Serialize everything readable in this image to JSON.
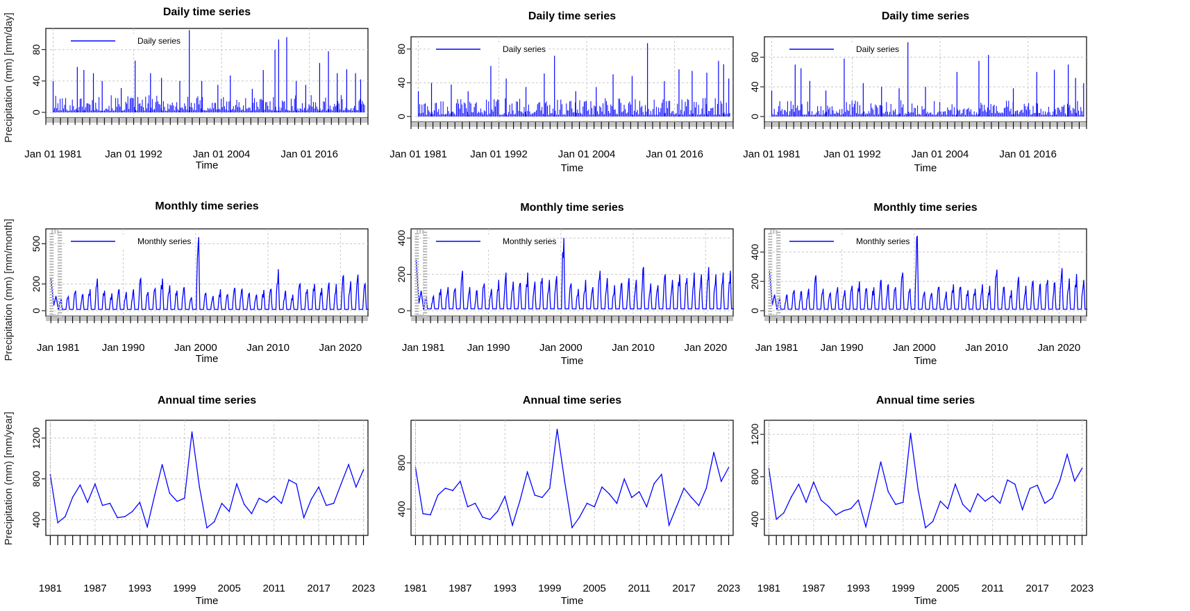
{
  "figure": {
    "ylabels": [
      "Precipitation (mm) [mm/day]",
      "Precipitation (mm) [mm/month]",
      "Precipitation (mm) [mm/year]"
    ],
    "grid": true,
    "line_color": "#0000ff"
  },
  "chart_data": [
    {
      "type": "line",
      "row": "daily",
      "col": 0,
      "title": "Daily time series",
      "xlabel": "Time",
      "legend": "Daily series",
      "legend_position": "top-left",
      "xlim": [
        1980,
        2024
      ],
      "ylim": [
        0,
        100
      ],
      "yticks": [
        0,
        40,
        80
      ],
      "xticks": [
        {
          "x": 1981,
          "label": "Jan 01 1981"
        },
        {
          "x": 1992,
          "label": "Jan 01 1992"
        },
        {
          "x": 2004,
          "label": "Jan 01 2004"
        },
        {
          "x": 2016,
          "label": "Jan 01 2016"
        }
      ],
      "peaks": [
        {
          "x": 1981.0,
          "y": 40
        },
        {
          "x": 1984.3,
          "y": 58
        },
        {
          "x": 1985.2,
          "y": 54
        },
        {
          "x": 1986.5,
          "y": 50
        },
        {
          "x": 1987.7,
          "y": 40
        },
        {
          "x": 1990.3,
          "y": 31
        },
        {
          "x": 1992.2,
          "y": 66
        },
        {
          "x": 1994.3,
          "y": 50
        },
        {
          "x": 1995.8,
          "y": 44
        },
        {
          "x": 1998.3,
          "y": 40
        },
        {
          "x": 1999.6,
          "y": 105
        },
        {
          "x": 2001.3,
          "y": 40
        },
        {
          "x": 2003.5,
          "y": 35
        },
        {
          "x": 2005.2,
          "y": 47
        },
        {
          "x": 2008.2,
          "y": 30
        },
        {
          "x": 2009.7,
          "y": 54
        },
        {
          "x": 2011.3,
          "y": 80
        },
        {
          "x": 2011.8,
          "y": 93
        },
        {
          "x": 2012.9,
          "y": 96
        },
        {
          "x": 2014.2,
          "y": 40
        },
        {
          "x": 2015.5,
          "y": 35
        },
        {
          "x": 2017.4,
          "y": 63
        },
        {
          "x": 2018.6,
          "y": 78
        },
        {
          "x": 2019.8,
          "y": 50
        },
        {
          "x": 2021.1,
          "y": 55
        },
        {
          "x": 2022.3,
          "y": 50
        },
        {
          "x": 2023.0,
          "y": 42
        }
      ]
    },
    {
      "type": "line",
      "row": "daily",
      "col": 1,
      "title": "Daily time series",
      "xlabel": "Time",
      "legend": "Daily series",
      "legend_position": "top-left",
      "xlim": [
        1980,
        2024
      ],
      "ylim": [
        0,
        88
      ],
      "yticks": [
        0,
        40,
        80
      ],
      "xticks": [
        {
          "x": 1981,
          "label": "Jan 01 1981"
        },
        {
          "x": 1992,
          "label": "Jan 01 1992"
        },
        {
          "x": 2004,
          "label": "Jan 01 2004"
        },
        {
          "x": 2016,
          "label": "Jan 01 2016"
        }
      ],
      "peaks": [
        {
          "x": 1981.0,
          "y": 30
        },
        {
          "x": 1982.8,
          "y": 40
        },
        {
          "x": 1985.5,
          "y": 38
        },
        {
          "x": 1987.8,
          "y": 30
        },
        {
          "x": 1990.9,
          "y": 60
        },
        {
          "x": 1993.0,
          "y": 45
        },
        {
          "x": 1995.7,
          "y": 35
        },
        {
          "x": 1998.2,
          "y": 51
        },
        {
          "x": 1999.6,
          "y": 72
        },
        {
          "x": 2002.5,
          "y": 30
        },
        {
          "x": 2005.3,
          "y": 35
        },
        {
          "x": 2007.6,
          "y": 50
        },
        {
          "x": 2010.2,
          "y": 48
        },
        {
          "x": 2012.3,
          "y": 87
        },
        {
          "x": 2014.6,
          "y": 42
        },
        {
          "x": 2016.6,
          "y": 56
        },
        {
          "x": 2018.4,
          "y": 54
        },
        {
          "x": 2020.4,
          "y": 52
        },
        {
          "x": 2022.0,
          "y": 66
        },
        {
          "x": 2022.7,
          "y": 62
        },
        {
          "x": 2023.4,
          "y": 45
        }
      ]
    },
    {
      "type": "line",
      "row": "daily",
      "col": 2,
      "title": "Daily time series",
      "xlabel": "Time",
      "legend": "Daily series",
      "legend_position": "top-left",
      "xlim": [
        1980,
        2024
      ],
      "ylim": [
        0,
        100
      ],
      "yticks": [
        0,
        40,
        80
      ],
      "xticks": [
        {
          "x": 1981,
          "label": "Jan 01 1981"
        },
        {
          "x": 1992,
          "label": "Jan 01 1992"
        },
        {
          "x": 2004,
          "label": "Jan 01 2004"
        },
        {
          "x": 2016,
          "label": "Jan 01 2016"
        }
      ],
      "peaks": [
        {
          "x": 1981.0,
          "y": 35
        },
        {
          "x": 1984.2,
          "y": 70
        },
        {
          "x": 1985.0,
          "y": 65
        },
        {
          "x": 1986.2,
          "y": 48
        },
        {
          "x": 1988.4,
          "y": 35
        },
        {
          "x": 1990.9,
          "y": 78
        },
        {
          "x": 1993.5,
          "y": 45
        },
        {
          "x": 1996.0,
          "y": 40
        },
        {
          "x": 1998.4,
          "y": 38
        },
        {
          "x": 1999.6,
          "y": 100
        },
        {
          "x": 2002.0,
          "y": 40
        },
        {
          "x": 2006.3,
          "y": 60
        },
        {
          "x": 2009.3,
          "y": 75
        },
        {
          "x": 2010.6,
          "y": 83
        },
        {
          "x": 2014.0,
          "y": 38
        },
        {
          "x": 2017.2,
          "y": 60
        },
        {
          "x": 2019.6,
          "y": 63
        },
        {
          "x": 2021.5,
          "y": 70
        },
        {
          "x": 2022.5,
          "y": 52
        },
        {
          "x": 2023.6,
          "y": 45
        }
      ]
    },
    {
      "type": "line",
      "row": "monthly",
      "col": 0,
      "title": "Monthly time series",
      "xlabel": "Time",
      "legend": "Monthly series",
      "legend_position": "top-left",
      "xlim": [
        1979.3,
        2023.8
      ],
      "ylim": [
        0,
        570
      ],
      "yticks": [
        0,
        200,
        500
      ],
      "xticks": [
        {
          "x": 1981,
          "label": "Jan 1981"
        },
        {
          "x": 1990,
          "label": "Jan 1990"
        },
        {
          "x": 2000,
          "label": "Jan 2000"
        },
        {
          "x": 2010,
          "label": "Jan 2010"
        },
        {
          "x": 2020,
          "label": "Jan 2020"
        }
      ],
      "start_value": 240,
      "annual_peaks": [
        95,
        105,
        150,
        120,
        160,
        240,
        150,
        130,
        160,
        140,
        160,
        240,
        140,
        165,
        240,
        190,
        150,
        175,
        100,
        550,
        130,
        110,
        160,
        120,
        170,
        160,
        130,
        120,
        155,
        160,
        310,
        150,
        120,
        200,
        160,
        200,
        170,
        210,
        200,
        260,
        220,
        270,
        200
      ]
    },
    {
      "type": "line",
      "row": "monthly",
      "col": 1,
      "title": "Monthly time series",
      "xlabel": "Time",
      "legend": "Monthly series",
      "legend_position": "top-left",
      "xlim": [
        1979.3,
        2023.8
      ],
      "ylim": [
        0,
        420
      ],
      "yticks": [
        0,
        200,
        400
      ],
      "xticks": [
        {
          "x": 1981,
          "label": "Jan 1981"
        },
        {
          "x": 1990,
          "label": "Jan 1990"
        },
        {
          "x": 2000,
          "label": "Jan 2000"
        },
        {
          "x": 2010,
          "label": "Jan 2010"
        },
        {
          "x": 2020,
          "label": "Jan 2020"
        }
      ],
      "start_value": 280,
      "annual_peaks": [
        70,
        80,
        120,
        130,
        120,
        220,
        130,
        110,
        150,
        120,
        170,
        210,
        160,
        150,
        210,
        160,
        180,
        170,
        190,
        400,
        150,
        120,
        170,
        130,
        220,
        180,
        140,
        150,
        180,
        170,
        240,
        150,
        140,
        200,
        170,
        200,
        180,
        210,
        200,
        240,
        200,
        210,
        220
      ]
    },
    {
      "type": "line",
      "row": "monthly",
      "col": 2,
      "title": "Monthly time series",
      "xlabel": "Time",
      "legend": "Monthly series",
      "legend_position": "top-left",
      "xlim": [
        1979.3,
        2023.8
      ],
      "ylim": [
        0,
        520
      ],
      "yticks": [
        0,
        200,
        400
      ],
      "xticks": [
        {
          "x": 1981,
          "label": "Jan 1981"
        },
        {
          "x": 1990,
          "label": "Jan 1990"
        },
        {
          "x": 2000,
          "label": "Jan 2000"
        },
        {
          "x": 2010,
          "label": "Jan 2010"
        },
        {
          "x": 2020,
          "label": "Jan 2020"
        }
      ],
      "start_value": 270,
      "annual_peaks": [
        90,
        110,
        140,
        130,
        150,
        240,
        150,
        120,
        160,
        140,
        170,
        200,
        150,
        160,
        210,
        180,
        160,
        260,
        150,
        510,
        130,
        120,
        160,
        130,
        180,
        160,
        140,
        150,
        180,
        170,
        280,
        160,
        140,
        230,
        170,
        200,
        180,
        210,
        190,
        290,
        220,
        250,
        210
      ]
    },
    {
      "type": "line",
      "row": "annual",
      "col": 0,
      "title": "Annual time series",
      "xlabel": "Time",
      "xlim": [
        1980.4,
        2023.6
      ],
      "ylim": [
        300,
        1320
      ],
      "yticks": [
        400,
        800,
        1200
      ],
      "xticks": [
        {
          "x": 1981,
          "label": "1981"
        },
        {
          "x": 1987,
          "label": "1987"
        },
        {
          "x": 1993,
          "label": "1993"
        },
        {
          "x": 1999,
          "label": "1999"
        },
        {
          "x": 2005,
          "label": "2005"
        },
        {
          "x": 2011,
          "label": "2011"
        },
        {
          "x": 2017,
          "label": "2017"
        },
        {
          "x": 2023,
          "label": "2023"
        }
      ],
      "x": [
        1981,
        1982,
        1983,
        1984,
        1985,
        1986,
        1987,
        1988,
        1989,
        1990,
        1991,
        1992,
        1993,
        1994,
        1995,
        1996,
        1997,
        1998,
        1999,
        2000,
        2001,
        2002,
        2003,
        2004,
        2005,
        2006,
        2007,
        2008,
        2009,
        2010,
        2011,
        2012,
        2013,
        2014,
        2015,
        2016,
        2017,
        2018,
        2019,
        2020,
        2021,
        2022,
        2023
      ],
      "y": [
        840,
        370,
        430,
        620,
        740,
        570,
        750,
        540,
        560,
        420,
        430,
        480,
        570,
        330,
        640,
        940,
        660,
        580,
        610,
        1260,
        720,
        320,
        380,
        560,
        480,
        750,
        550,
        460,
        610,
        570,
        630,
        560,
        790,
        750,
        420,
        600,
        720,
        540,
        560,
        750,
        940,
        720,
        890
      ]
    },
    {
      "type": "line",
      "row": "annual",
      "col": 1,
      "title": "Annual time series",
      "xlabel": "Time",
      "xlim": [
        1980.4,
        2023.6
      ],
      "ylim": [
        220,
        1120
      ],
      "yticks": [
        400,
        800
      ],
      "xticks": [
        {
          "x": 1981,
          "label": "1981"
        },
        {
          "x": 1987,
          "label": "1987"
        },
        {
          "x": 1993,
          "label": "1993"
        },
        {
          "x": 1999,
          "label": "1999"
        },
        {
          "x": 2005,
          "label": "2005"
        },
        {
          "x": 2011,
          "label": "2011"
        },
        {
          "x": 2017,
          "label": "2017"
        },
        {
          "x": 2023,
          "label": "2023"
        }
      ],
      "x": [
        1981,
        1982,
        1983,
        1984,
        1985,
        1986,
        1987,
        1988,
        1989,
        1990,
        1991,
        1992,
        1993,
        1994,
        1995,
        1996,
        1997,
        1998,
        1999,
        2000,
        2001,
        2002,
        2003,
        2004,
        2005,
        2006,
        2007,
        2008,
        2009,
        2010,
        2011,
        2012,
        2013,
        2014,
        2015,
        2016,
        2017,
        2018,
        2019,
        2020,
        2021,
        2022,
        2023
      ],
      "y": [
        760,
        360,
        350,
        520,
        580,
        560,
        640,
        420,
        450,
        330,
        310,
        380,
        510,
        260,
        470,
        720,
        520,
        500,
        580,
        1090,
        640,
        240,
        330,
        450,
        420,
        590,
        530,
        450,
        660,
        500,
        550,
        420,
        620,
        700,
        260,
        420,
        580,
        500,
        430,
        580,
        890,
        640,
        760
      ]
    },
    {
      "type": "line",
      "row": "annual",
      "col": 2,
      "title": "Annual time series",
      "xlabel": "Time",
      "xlim": [
        1980.4,
        2023.6
      ],
      "ylim": [
        300,
        1280
      ],
      "yticks": [
        400,
        800,
        1200
      ],
      "xticks": [
        {
          "x": 1981,
          "label": "1981"
        },
        {
          "x": 1987,
          "label": "1987"
        },
        {
          "x": 1993,
          "label": "1993"
        },
        {
          "x": 1999,
          "label": "1999"
        },
        {
          "x": 2005,
          "label": "2005"
        },
        {
          "x": 2011,
          "label": "2011"
        },
        {
          "x": 2017,
          "label": "2017"
        },
        {
          "x": 2023,
          "label": "2023"
        }
      ],
      "x": [
        1981,
        1982,
        1983,
        1984,
        1985,
        1986,
        1987,
        1988,
        1989,
        1990,
        1991,
        1992,
        1993,
        1994,
        1995,
        1996,
        1997,
        1998,
        1999,
        2000,
        2001,
        2002,
        2003,
        2004,
        2005,
        2006,
        2007,
        2008,
        2009,
        2010,
        2011,
        2012,
        2013,
        2014,
        2015,
        2016,
        2017,
        2018,
        2019,
        2020,
        2021,
        2022,
        2023
      ],
      "y": [
        880,
        400,
        460,
        610,
        730,
        560,
        750,
        580,
        520,
        440,
        480,
        500,
        580,
        330,
        620,
        940,
        660,
        540,
        560,
        1210,
        680,
        320,
        380,
        570,
        500,
        730,
        540,
        470,
        640,
        570,
        620,
        550,
        770,
        730,
        490,
        690,
        720,
        550,
        600,
        760,
        1010,
        760,
        880
      ]
    }
  ]
}
